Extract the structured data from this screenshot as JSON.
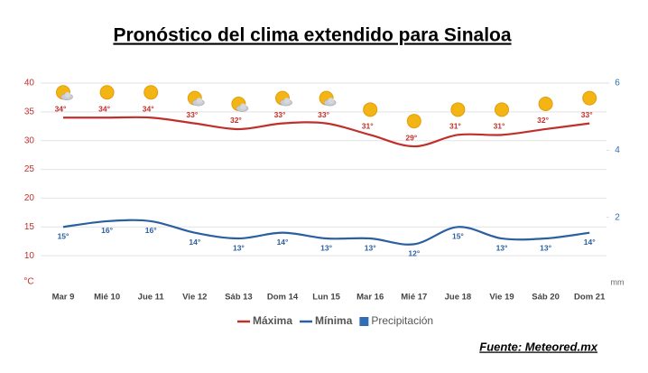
{
  "chart_data": {
    "type": "line",
    "title": "Pronóstico del clima extendido para Sinaloa",
    "source": "Fuente: Meteored.mx",
    "y_label": "°C",
    "y2_label": "mm",
    "categories": [
      "Mar 9",
      "Mié 10",
      "Jue 11",
      "Vie 12",
      "Sáb 13",
      "Dom 14",
      "Lun 15",
      "Mar 16",
      "Mié 17",
      "Jue 18",
      "Vie 19",
      "Sáb 20",
      "Dom 21"
    ],
    "icons": [
      "sun-cloud",
      "sun",
      "sun",
      "sun-cloud",
      "sun-cloud",
      "sun-cloud",
      "sun-cloud",
      "sun",
      "sun",
      "sun",
      "sun",
      "sun",
      "sun"
    ],
    "series": [
      {
        "name": "Máxima",
        "color": "#c0302b",
        "values": [
          34,
          34,
          34,
          33,
          32,
          33,
          33,
          31,
          29,
          31,
          31,
          32,
          33
        ],
        "value_labels": [
          "34°",
          "34°",
          "34°",
          "33°",
          "32°",
          "33°",
          "33°",
          "31°",
          "29°",
          "31°",
          "31°",
          "32°",
          "33°"
        ]
      },
      {
        "name": "Mínima",
        "color": "#2a5fa0",
        "values": [
          15,
          16,
          16,
          14,
          13,
          14,
          13,
          13,
          12,
          15,
          13,
          13,
          14
        ],
        "value_labels": [
          "15°",
          "16°",
          "16°",
          "14°",
          "13°",
          "14°",
          "13°",
          "13°",
          "12°",
          "15°",
          "13°",
          "13°",
          "14°"
        ]
      },
      {
        "name": "Precipitación",
        "color": "#2f6db5",
        "axis": "y2",
        "values": [
          null,
          null,
          null,
          null,
          null,
          null,
          null,
          null,
          null,
          null,
          null,
          null,
          null
        ]
      }
    ],
    "ylim": [
      5,
      40
    ],
    "yticks": [
      10,
      15,
      20,
      25,
      30,
      35,
      40
    ],
    "y2lim": [
      0,
      6
    ],
    "y2ticks": [
      2,
      4,
      6
    ],
    "grid": true,
    "legend": "bottom"
  }
}
